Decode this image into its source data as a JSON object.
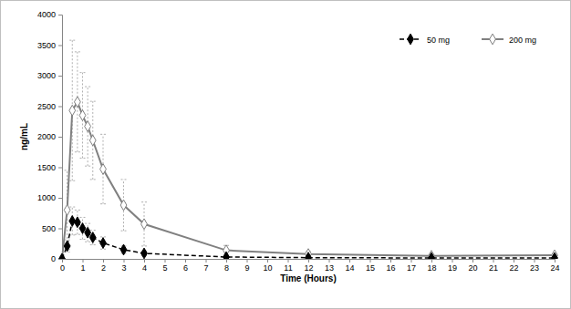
{
  "chart_data": {
    "type": "line",
    "x_label": "Time (Hours)",
    "y_label": "ng/mL",
    "x": [
      0,
      0.25,
      0.5,
      0.75,
      1,
      1.25,
      1.5,
      2,
      3,
      4,
      8,
      12,
      18,
      24
    ],
    "series": [
      {
        "name": "50 mg",
        "color": "#000000",
        "marker": "diamond",
        "line_style": "dashed",
        "values": [
          0,
          210,
          620,
          600,
          500,
          430,
          350,
          260,
          150,
          90,
          30,
          20,
          15,
          15
        ],
        "errors": [
          0,
          100,
          230,
          200,
          180,
          150,
          120,
          100,
          60,
          40,
          10,
          10,
          10,
          10
        ]
      },
      {
        "name": "200 mg",
        "color": "#808080",
        "marker": "diamond-open",
        "line_style": "solid",
        "values": [
          0,
          800,
          2430,
          2570,
          2350,
          2170,
          1940,
          1470,
          880,
          570,
          140,
          80,
          50,
          60
        ],
        "errors": [
          0,
          650,
          1150,
          820,
          700,
          650,
          640,
          570,
          420,
          360,
          80,
          40,
          20,
          20
        ]
      }
    ],
    "xlim": [
      0,
      24
    ],
    "xticks": [
      0,
      1,
      2,
      3,
      4,
      5,
      6,
      7,
      8,
      9,
      10,
      11,
      12,
      13,
      14,
      15,
      16,
      17,
      18,
      19,
      20,
      21,
      22,
      23,
      24
    ],
    "ylim": [
      0,
      4000
    ],
    "yticks": [
      0,
      500,
      1000,
      1500,
      2000,
      2500,
      3000,
      3500,
      4000
    ],
    "grid": false,
    "legend": "top-right"
  }
}
